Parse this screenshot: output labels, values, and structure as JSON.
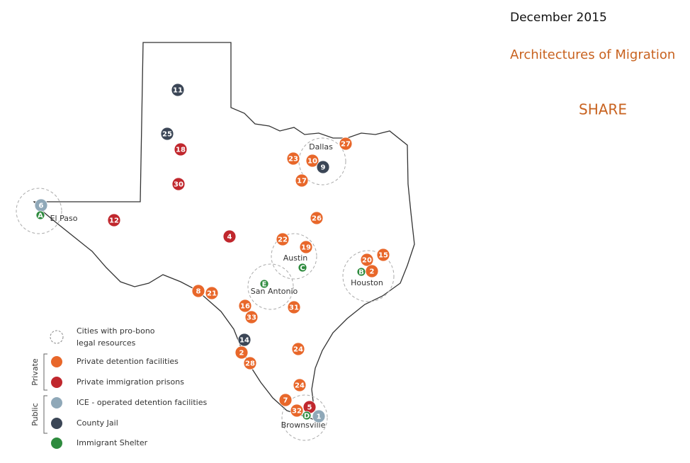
{
  "header": {
    "date": "December 2015",
    "title": "Architectures of Migration",
    "share": "SHARE"
  },
  "map": {
    "cities": [
      "Dallas",
      "El Paso",
      "Austin",
      "San Antonio",
      "Houston",
      "Brownsville"
    ],
    "markers": [
      {
        "label": "11",
        "color": "#3b4656"
      },
      {
        "label": "25",
        "color": "#3b4656"
      },
      {
        "label": "18",
        "color": "#c0272d"
      },
      {
        "label": "30",
        "color": "#c0272d"
      },
      {
        "label": "12",
        "color": "#c0272d"
      },
      {
        "label": "4",
        "color": "#c0272d"
      },
      {
        "label": "6",
        "color": "#8fa8b8"
      },
      {
        "label": "A",
        "color": "#2e8b3e"
      },
      {
        "label": "27",
        "color": "#e8672a"
      },
      {
        "label": "23",
        "color": "#e8672a"
      },
      {
        "label": "10",
        "color": "#e8672a"
      },
      {
        "label": "9",
        "color": "#3b4656"
      },
      {
        "label": "17",
        "color": "#e8672a"
      },
      {
        "label": "26",
        "color": "#e8672a"
      },
      {
        "label": "22",
        "color": "#e8672a"
      },
      {
        "label": "19",
        "color": "#e8672a"
      },
      {
        "label": "C",
        "color": "#2e8b3e"
      },
      {
        "label": "E",
        "color": "#2e8b3e"
      },
      {
        "label": "20",
        "color": "#e8672a"
      },
      {
        "label": "15",
        "color": "#e8672a"
      },
      {
        "label": "B",
        "color": "#2e8b3e"
      },
      {
        "label": "2",
        "color": "#e8672a"
      },
      {
        "label": "8",
        "color": "#e8672a"
      },
      {
        "label": "21",
        "color": "#e8672a"
      },
      {
        "label": "16",
        "color": "#e8672a"
      },
      {
        "label": "33",
        "color": "#e8672a"
      },
      {
        "label": "31",
        "color": "#e8672a"
      },
      {
        "label": "14",
        "color": "#3b4656"
      },
      {
        "label": "24",
        "color": "#e8672a"
      },
      {
        "label": "2",
        "color": "#e8672a"
      },
      {
        "label": "28",
        "color": "#e8672a"
      },
      {
        "label": "24",
        "color": "#e8672a"
      },
      {
        "label": "7",
        "color": "#e8672a"
      },
      {
        "label": "32",
        "color": "#e8672a"
      },
      {
        "label": "5",
        "color": "#c0272d"
      },
      {
        "label": "D",
        "color": "#2e8b3e"
      },
      {
        "label": "1",
        "color": "#8fa8b8"
      }
    ],
    "legend": {
      "cities": [
        "Cities with pro-bono",
        "legal resources"
      ],
      "groups": [
        "Private",
        "Public"
      ],
      "items": [
        {
          "label": "Private detention facilities",
          "color": "#e8672a"
        },
        {
          "label": "Private immigration prisons",
          "color": "#c0272d"
        },
        {
          "label": "ICE - operated detention facilities",
          "color": "#8fa8b8"
        },
        {
          "label": "County Jail",
          "color": "#3b4656"
        },
        {
          "label": "Immigrant Shelter",
          "color": "#2e8b3e"
        }
      ]
    }
  }
}
